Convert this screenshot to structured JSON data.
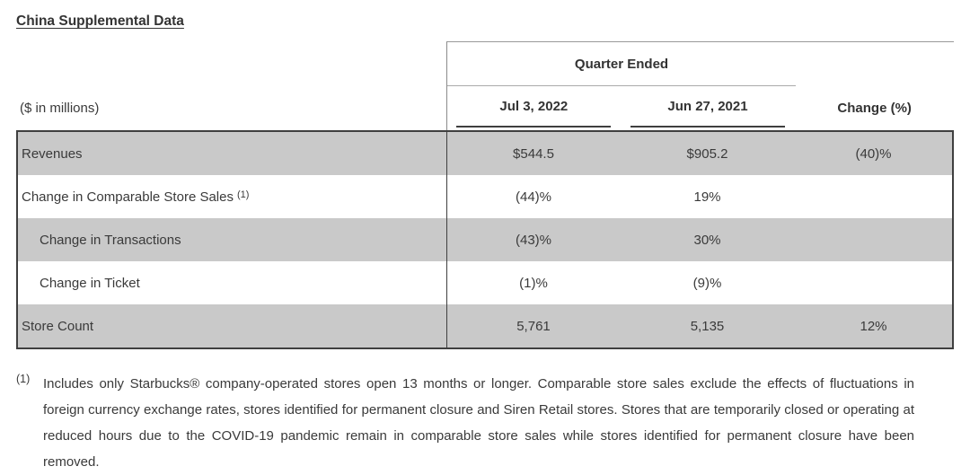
{
  "page": {
    "title": "China Supplemental Data"
  },
  "table": {
    "group_header": "Quarter Ended",
    "columns": {
      "label": "($ in millions)",
      "col1": "Jul 3, 2022",
      "col2": "Jun 27, 2021",
      "col3": "Change (%)"
    },
    "rows": [
      {
        "label": "Revenues",
        "col1": "$544.5",
        "col2": "$905.2",
        "col3": "(40)%"
      },
      {
        "label": "Change in Comparable Store Sales",
        "sup": "(1)",
        "col1": "(44)%",
        "col2": "19%",
        "col3": ""
      },
      {
        "label": "Change in Transactions",
        "col1": "(43)%",
        "col2": "30%",
        "col3": ""
      },
      {
        "label": "Change in Ticket",
        "col1": "(1)%",
        "col2": "(9)%",
        "col3": ""
      },
      {
        "label": "Store Count",
        "col1": "5,761",
        "col2": "5,135",
        "col3": "12%"
      }
    ]
  },
  "footnote": {
    "marker": "(1)",
    "text": "Includes only Starbucks® company-operated stores open 13 months or longer. Comparable store sales exclude the effects of fluctuations in foreign currency exchange rates, stores identified for permanent closure and Siren Retail stores. Stores that are temporarily closed or operating at reduced hours due to the COVID-19 pandemic remain in comparable store sales while stores identified for permanent closure have been removed."
  },
  "colors": {
    "shaded_row": "#c9c9c9",
    "table_border": "#3f3f3f",
    "header_line": "#999999",
    "text": "#3a3a3a"
  }
}
